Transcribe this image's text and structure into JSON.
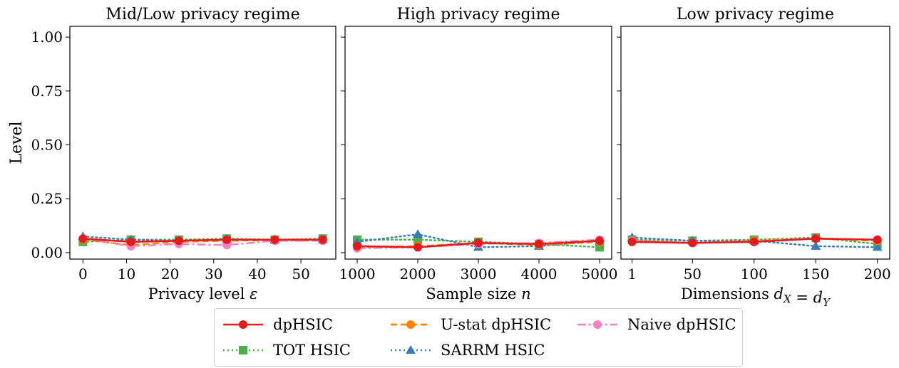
{
  "chart_data": [
    {
      "type": "line",
      "title": "Mid/Low privacy regime",
      "xlabel": "Privacy level ε",
      "ylabel": "Level",
      "x": [
        0,
        11,
        22,
        33,
        44,
        55
      ],
      "xticks": [
        0,
        10,
        20,
        30,
        40,
        50
      ],
      "xlim": [
        -3,
        58
      ],
      "ylim": [
        -0.03,
        1.05
      ],
      "yticks": [
        "0.00",
        "0.25",
        "0.50",
        "0.75",
        "1.00"
      ],
      "series": [
        {
          "name": "dpHSIC",
          "values": [
            0.065,
            0.05,
            0.055,
            0.06,
            0.06,
            0.06
          ]
        },
        {
          "name": "U-stat dpHSIC",
          "values": [
            0.06,
            0.035,
            0.05,
            0.055,
            0.058,
            0.055
          ]
        },
        {
          "name": "Naive dpHSIC",
          "values": [
            0.065,
            0.03,
            0.04,
            0.035,
            0.055,
            0.055
          ]
        },
        {
          "name": "TOT HSIC",
          "values": [
            0.05,
            0.06,
            0.06,
            0.065,
            0.06,
            0.065
          ]
        },
        {
          "name": "SARRM HSIC",
          "values": [
            0.075,
            0.06,
            0.055,
            0.06,
            0.06,
            0.06
          ]
        }
      ]
    },
    {
      "type": "line",
      "title": "High privacy regime",
      "xlabel": "Sample size n",
      "ylabel": "",
      "x": [
        1000,
        2000,
        3000,
        4000,
        5000
      ],
      "xticks": [
        1000,
        2000,
        3000,
        4000,
        5000
      ],
      "xlim": [
        800,
        5200
      ],
      "ylim": [
        -0.03,
        1.05
      ],
      "series": [
        {
          "name": "dpHSIC",
          "values": [
            0.03,
            0.025,
            0.045,
            0.04,
            0.055
          ]
        },
        {
          "name": "U-stat dpHSIC",
          "values": [
            0.025,
            0.03,
            0.045,
            0.035,
            0.05
          ]
        },
        {
          "name": "Naive dpHSIC",
          "values": [
            0.02,
            0.025,
            0.04,
            0.045,
            0.06
          ]
        },
        {
          "name": "TOT HSIC",
          "values": [
            0.06,
            0.06,
            0.05,
            0.04,
            0.025
          ]
        },
        {
          "name": "SARRM HSIC",
          "values": [
            0.05,
            0.085,
            0.025,
            0.03,
            0.055
          ]
        }
      ]
    },
    {
      "type": "line",
      "title": "Low privacy regime",
      "xlabel": "Dimensions d_X = d_Y",
      "ylabel": "",
      "x": [
        1,
        50,
        100,
        150,
        200
      ],
      "xticks": [
        1,
        50,
        100,
        150,
        200
      ],
      "xlim": [
        -8,
        210
      ],
      "ylim": [
        -0.03,
        1.05
      ],
      "series": [
        {
          "name": "dpHSIC",
          "values": [
            0.05,
            0.045,
            0.05,
            0.065,
            0.06
          ]
        },
        {
          "name": "U-stat dpHSIC",
          "values": [
            0.055,
            0.045,
            0.055,
            0.065,
            0.055
          ]
        },
        {
          "name": "Naive dpHSIC",
          "values": [
            0.055,
            0.045,
            0.05,
            0.065,
            0.06
          ]
        },
        {
          "name": "TOT HSIC",
          "values": [
            0.06,
            0.055,
            0.06,
            0.07,
            0.04
          ]
        },
        {
          "name": "SARRM HSIC",
          "values": [
            0.07,
            0.055,
            0.055,
            0.03,
            0.025
          ]
        }
      ]
    }
  ],
  "styles": {
    "dpHSIC": {
      "color": "#e41a1c",
      "dash": "",
      "marker": "circle"
    },
    "U-stat dpHSIC": {
      "color": "#ff7f00",
      "dash": "9,5",
      "marker": "circle"
    },
    "Naive dpHSIC": {
      "color": "#f781bf",
      "dash": "12,4,3,4",
      "marker": "circle"
    },
    "TOT HSIC": {
      "color": "#4daf4a",
      "dash": "2,4",
      "marker": "square"
    },
    "SARRM HSIC": {
      "color": "#377eb8",
      "dash": "2,4",
      "marker": "triangle"
    }
  },
  "legend": {
    "placement": "bottom-center",
    "items": [
      "dpHSIC",
      "U-stat dpHSIC",
      "Naive dpHSIC",
      "TOT HSIC",
      "SARRM HSIC"
    ]
  }
}
